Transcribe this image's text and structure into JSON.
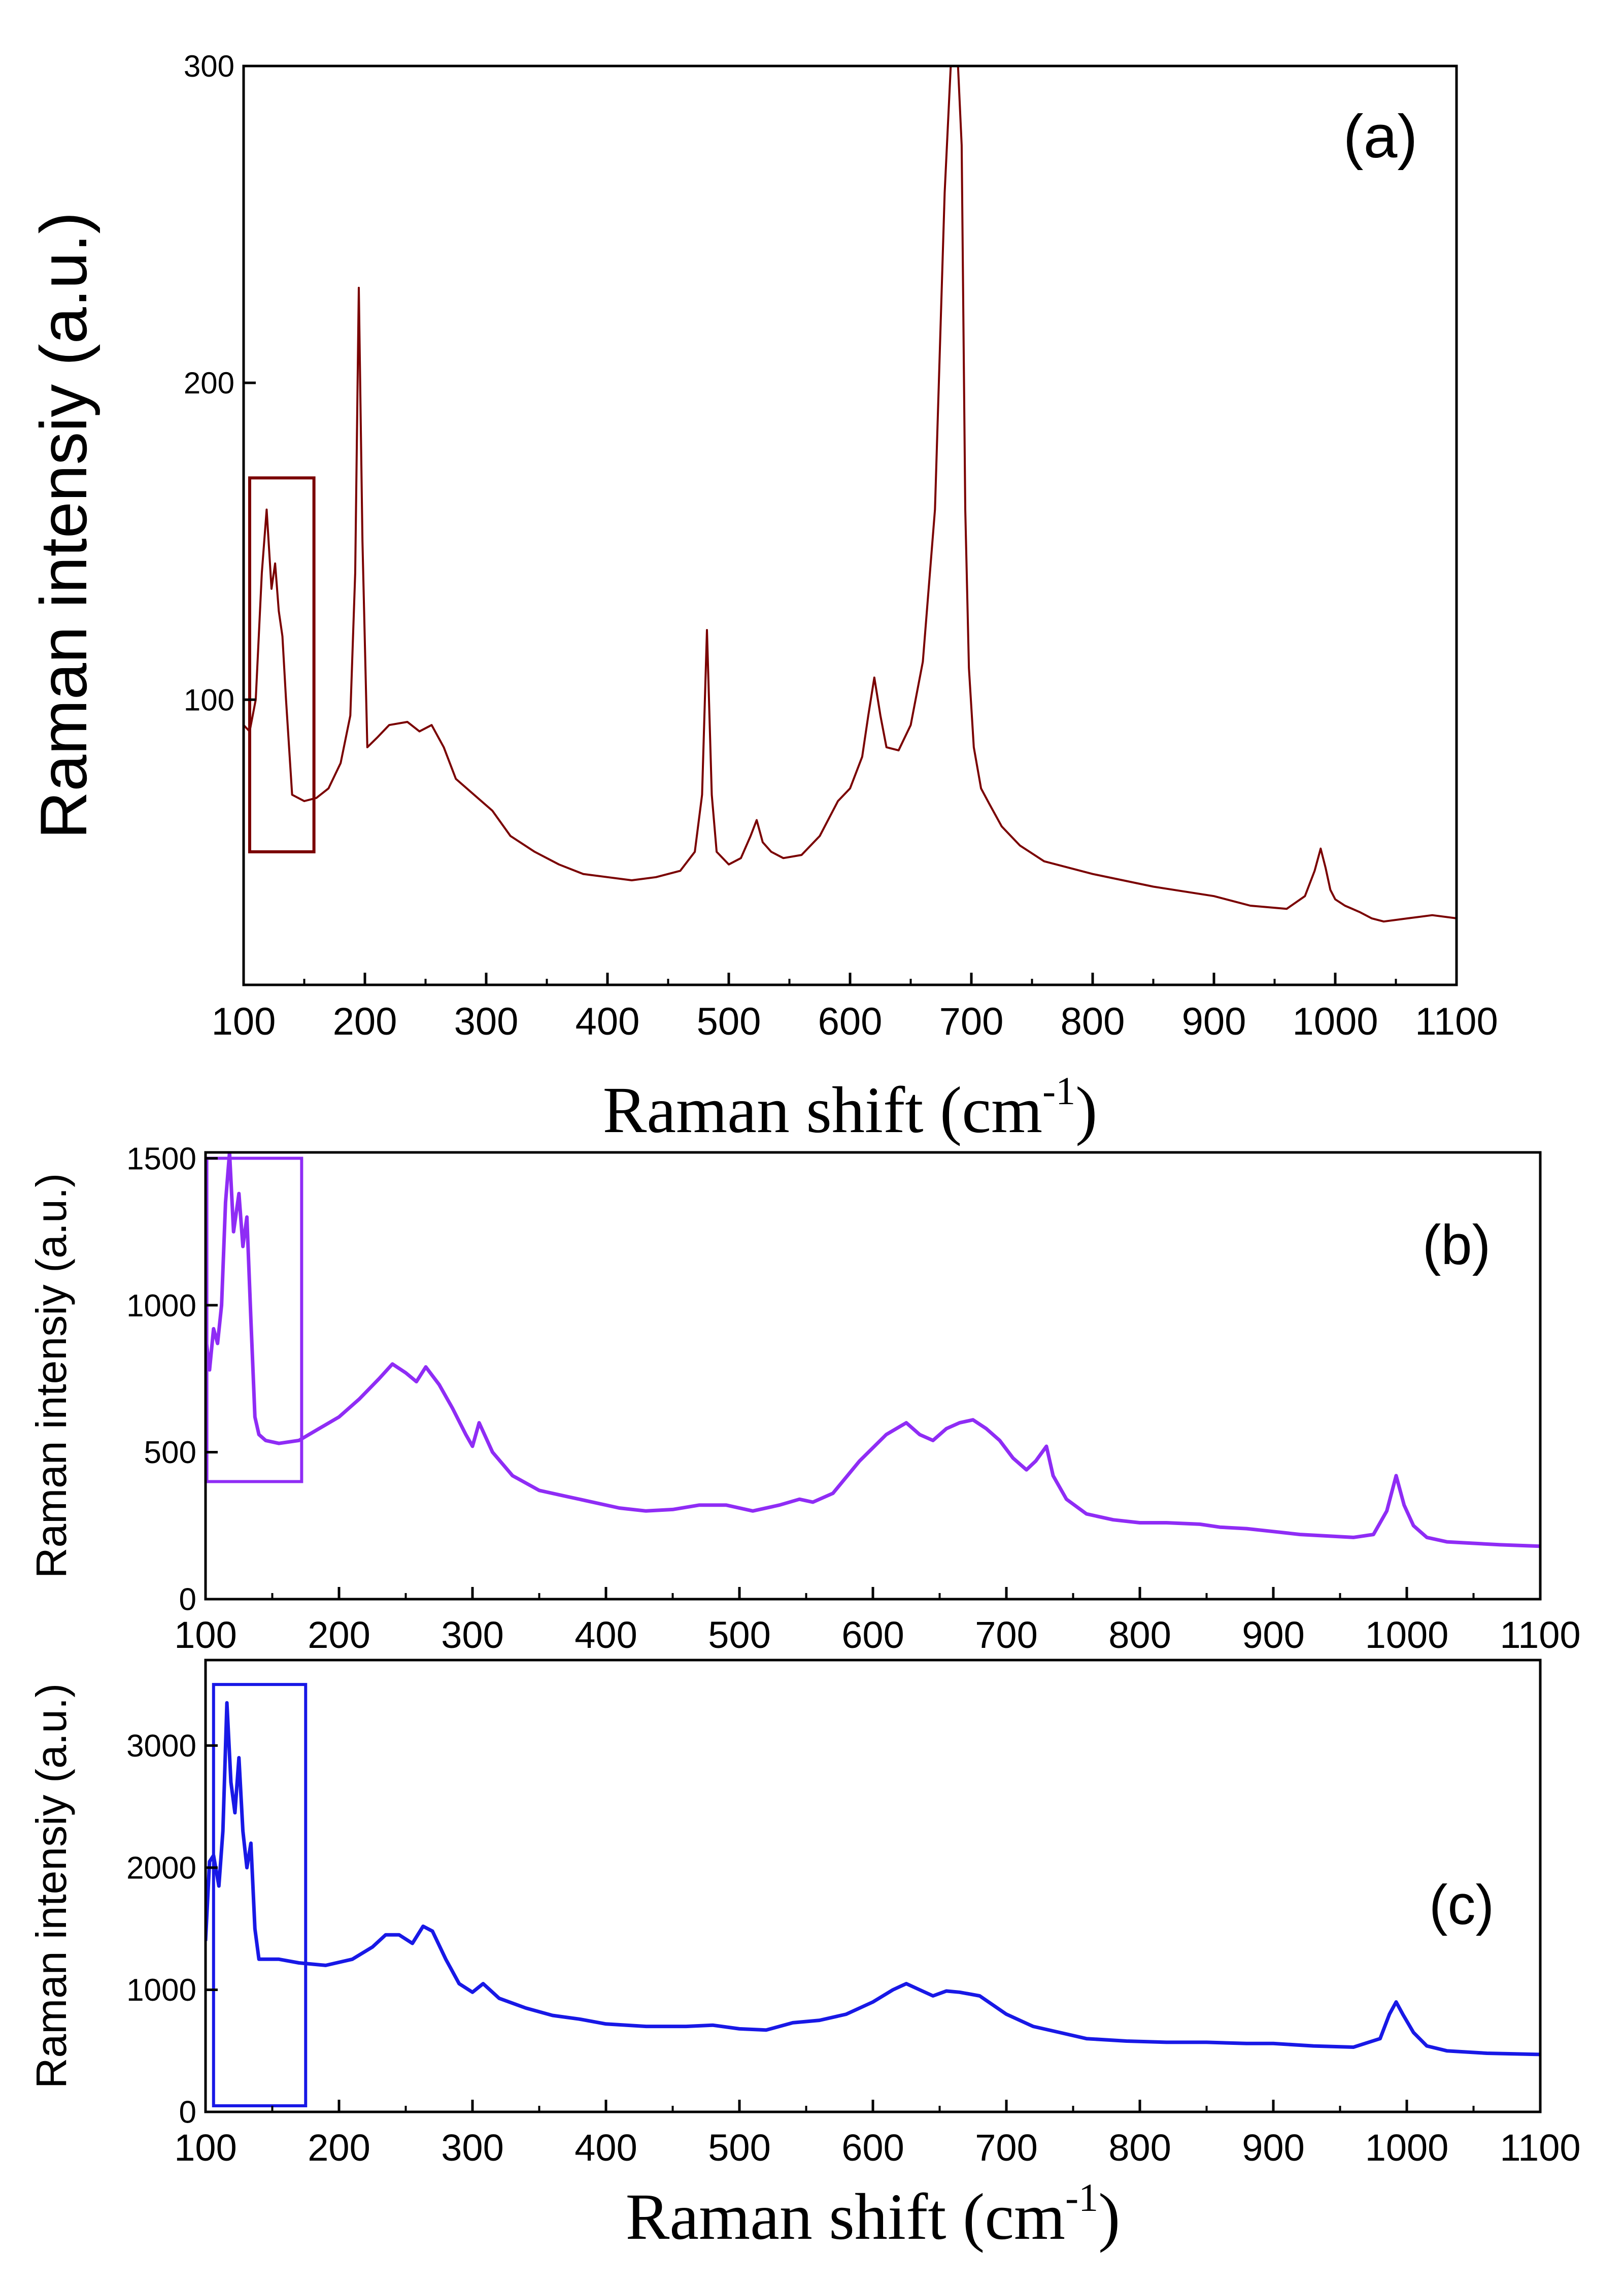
{
  "chart_data": [
    {
      "type": "line",
      "panel": "(a)",
      "color": "#7a0000",
      "xlabel": "Raman shift (cm",
      "xlabel_sup": "-1",
      "xlabel_close": ")",
      "ylabel": "Raman intensiy (a.u.)",
      "xlim": [
        100,
        1100
      ],
      "ylim": [
        10,
        300
      ],
      "xticks": [
        "100",
        "200",
        "300",
        "400",
        "500",
        "600",
        "700",
        "800",
        "900",
        "1000",
        "1100"
      ],
      "yticks": [
        "100",
        "200",
        "300"
      ],
      "ytick_values": [
        100,
        200,
        300
      ],
      "highlight_box": {
        "x": [
          105,
          158
        ],
        "y": [
          52,
          170
        ]
      },
      "x": [
        100,
        105,
        110,
        115,
        119,
        123,
        126,
        129,
        132,
        135,
        140,
        150,
        160,
        170,
        180,
        188,
        192,
        195,
        198,
        202,
        210,
        220,
        235,
        245,
        255,
        265,
        275,
        290,
        305,
        320,
        340,
        360,
        380,
        400,
        420,
        440,
        460,
        472,
        478,
        482,
        486,
        490,
        500,
        510,
        518,
        523,
        528,
        535,
        545,
        560,
        575,
        590,
        600,
        610,
        615,
        620,
        625,
        630,
        640,
        650,
        660,
        670,
        678,
        683,
        686,
        689,
        692,
        695,
        698,
        702,
        708,
        715,
        725,
        740,
        760,
        780,
        800,
        850,
        900,
        930,
        960,
        975,
        983,
        988,
        992,
        996,
        1000,
        1008,
        1020,
        1030,
        1040,
        1060,
        1080,
        1100
      ],
      "y": [
        92,
        90,
        100,
        140,
        160,
        135,
        143,
        128,
        120,
        100,
        70,
        68,
        69,
        72,
        80,
        95,
        140,
        230,
        150,
        85,
        88,
        92,
        93,
        90,
        92,
        85,
        75,
        70,
        65,
        57,
        52,
        48,
        45,
        44,
        43,
        44,
        46,
        52,
        70,
        122,
        70,
        52,
        48,
        50,
        57,
        62,
        55,
        52,
        50,
        51,
        57,
        68,
        72,
        82,
        95,
        107,
        95,
        85,
        84,
        92,
        112,
        160,
        260,
        300,
        300,
        300,
        275,
        160,
        110,
        85,
        72,
        67,
        60,
        54,
        49,
        47,
        45,
        41,
        38,
        35,
        34,
        38,
        46,
        53,
        47,
        40,
        37,
        35,
        33,
        31,
        30,
        31,
        32,
        31
      ]
    },
    {
      "type": "line",
      "panel": "(b)",
      "color": "#8f2cf5",
      "xlabel": "",
      "ylabel": "Raman intensiy (a.u.)",
      "xlim": [
        100,
        1100
      ],
      "ylim": [
        0,
        1520
      ],
      "xticks": [
        "100",
        "200",
        "300",
        "400",
        "500",
        "600",
        "700",
        "800",
        "900",
        "1000",
        "1100"
      ],
      "yticks": [
        "0",
        "500",
        "1000",
        "1500"
      ],
      "ytick_values": [
        0,
        500,
        1000,
        1500
      ],
      "highlight_box": {
        "x": [
          101,
          172
        ],
        "y": [
          400,
          1500
        ]
      },
      "x": [
        100,
        103,
        106,
        109,
        112,
        115,
        118,
        121,
        125,
        128,
        131,
        134,
        137,
        140,
        145,
        155,
        170,
        185,
        200,
        215,
        230,
        240,
        250,
        258,
        265,
        275,
        285,
        295,
        300,
        305,
        315,
        330,
        350,
        370,
        390,
        410,
        430,
        450,
        470,
        490,
        510,
        530,
        545,
        555,
        570,
        590,
        610,
        625,
        635,
        645,
        655,
        665,
        675,
        685,
        695,
        705,
        715,
        722,
        730,
        735,
        745,
        760,
        780,
        800,
        820,
        845,
        860,
        880,
        900,
        920,
        940,
        960,
        975,
        985,
        992,
        998,
        1005,
        1015,
        1030,
        1050,
        1070,
        1100
      ],
      "y": [
        900,
        780,
        920,
        870,
        1000,
        1350,
        1520,
        1250,
        1380,
        1200,
        1300,
        950,
        620,
        560,
        540,
        530,
        540,
        580,
        620,
        680,
        750,
        800,
        770,
        740,
        790,
        730,
        650,
        560,
        520,
        600,
        500,
        420,
        370,
        350,
        330,
        310,
        300,
        305,
        320,
        320,
        300,
        320,
        340,
        330,
        360,
        470,
        560,
        600,
        560,
        540,
        580,
        600,
        610,
        580,
        540,
        480,
        440,
        470,
        520,
        420,
        340,
        290,
        270,
        260,
        260,
        255,
        245,
        240,
        230,
        220,
        215,
        210,
        220,
        300,
        420,
        320,
        250,
        210,
        195,
        190,
        185,
        180
      ]
    },
    {
      "type": "line",
      "panel": "(c)",
      "color": "#1818e6",
      "xlabel": "Raman shift (cm",
      "xlabel_sup": "-1",
      "xlabel_close": ")",
      "ylabel": "Raman intensiy (a.u.)",
      "xlim": [
        100,
        1100
      ],
      "ylim": [
        0,
        3700
      ],
      "xticks": [
        "100",
        "200",
        "300",
        "400",
        "500",
        "600",
        "700",
        "800",
        "900",
        "1000",
        "1100"
      ],
      "yticks": [
        "0",
        "1000",
        "2000",
        "3000"
      ],
      "ytick_values": [
        0,
        1000,
        2000,
        3000
      ],
      "highlight_box": {
        "x": [
          106,
          175
        ],
        "y": [
          50,
          3500
        ]
      },
      "x": [
        100,
        103,
        106,
        110,
        113,
        116,
        119,
        122,
        125,
        128,
        131,
        134,
        137,
        140,
        145,
        155,
        170,
        190,
        210,
        225,
        235,
        245,
        255,
        263,
        270,
        280,
        290,
        300,
        308,
        320,
        340,
        360,
        380,
        400,
        430,
        460,
        480,
        500,
        520,
        540,
        560,
        580,
        600,
        615,
        625,
        635,
        645,
        655,
        665,
        680,
        700,
        720,
        740,
        760,
        790,
        820,
        850,
        880,
        900,
        930,
        960,
        980,
        987,
        992,
        997,
        1005,
        1015,
        1030,
        1060,
        1100
      ],
      "y": [
        1400,
        2050,
        2100,
        1850,
        2300,
        3350,
        2700,
        2450,
        2900,
        2300,
        2000,
        2200,
        1500,
        1250,
        1250,
        1250,
        1220,
        1200,
        1250,
        1350,
        1450,
        1450,
        1380,
        1520,
        1480,
        1250,
        1050,
        980,
        1050,
        930,
        850,
        790,
        760,
        720,
        700,
        700,
        710,
        680,
        670,
        730,
        750,
        800,
        900,
        1000,
        1050,
        1000,
        950,
        990,
        980,
        950,
        800,
        700,
        650,
        600,
        580,
        570,
        570,
        560,
        560,
        540,
        530,
        600,
        800,
        900,
        800,
        650,
        540,
        500,
        480,
        470
      ]
    }
  ]
}
